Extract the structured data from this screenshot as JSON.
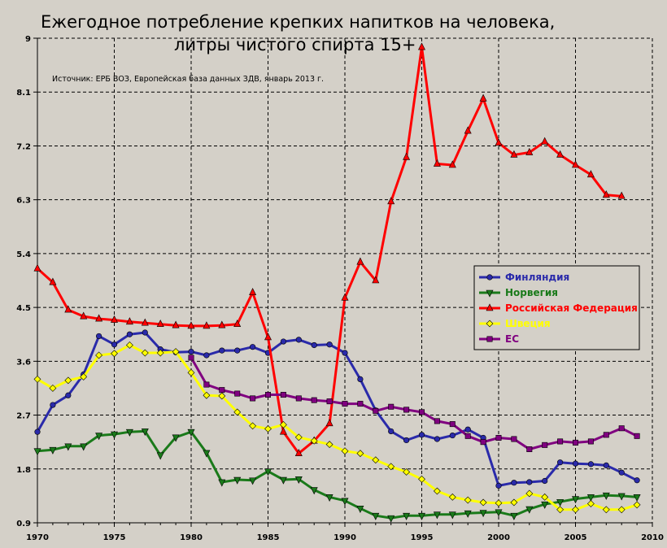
{
  "chart_data": {
    "type": "line",
    "title_line1": "Ежегодное потребление крепких напитков на человека,",
    "title_line2": "литры чистого спирта 15+",
    "source": "Источник: ЕРБ ВОЗ, Европейская база данных ЗДВ, январь 2013 г.",
    "xlim": [
      1970,
      2010
    ],
    "ylim": [
      0.9,
      9
    ],
    "x_ticks": [
      1970,
      1975,
      1980,
      1985,
      1990,
      1995,
      2000,
      2005,
      2010
    ],
    "y_ticks": [
      0.9,
      1.8,
      2.7,
      3.6,
      4.5,
      5.4,
      6.3,
      7.2,
      8.1,
      9
    ],
    "y_tick_labels": [
      "0.9",
      "1.8",
      "2.7",
      "3.6",
      "4.5",
      "5.4",
      "6.3",
      "7.2",
      "8.1",
      "9"
    ],
    "x_tick_labels": [
      "1970",
      "1975",
      "1980",
      "1985",
      "1990",
      "1995",
      "2000",
      "2005",
      "2010"
    ],
    "grid": true,
    "legend_position": "right",
    "series": [
      {
        "name": "Финляндия",
        "color": "#2a2aaa",
        "marker": "circle",
        "x": [
          1970,
          1971,
          1972,
          1973,
          1974,
          1975,
          1976,
          1977,
          1978,
          1979,
          1980,
          1981,
          1982,
          1983,
          1984,
          1985,
          1986,
          1987,
          1988,
          1989,
          1990,
          1991,
          1992,
          1993,
          1994,
          1995,
          1996,
          1997,
          1998,
          1999,
          2000,
          2001,
          2002,
          2003,
          2004,
          2005,
          2006,
          2007,
          2008,
          2009
        ],
        "y": [
          2.42,
          2.87,
          3.03,
          3.38,
          4.02,
          3.88,
          4.05,
          4.08,
          3.8,
          3.75,
          3.76,
          3.7,
          3.78,
          3.78,
          3.84,
          3.74,
          3.93,
          3.96,
          3.87,
          3.88,
          3.74,
          3.3,
          2.78,
          2.43,
          2.28,
          2.37,
          2.3,
          2.36,
          2.46,
          2.32,
          1.52,
          1.57,
          1.58,
          1.6,
          1.91,
          1.89,
          1.88,
          1.86,
          1.74,
          1.61
        ]
      },
      {
        "name": "Норвегия",
        "color": "#1a7a1a",
        "marker": "triangle-down",
        "x": [
          1970,
          1971,
          1972,
          1973,
          1974,
          1975,
          1976,
          1977,
          1978,
          1979,
          1980,
          1981,
          1982,
          1983,
          1984,
          1985,
          1986,
          1987,
          1988,
          1989,
          1990,
          1991,
          1992,
          1993,
          1994,
          1995,
          1996,
          1997,
          1998,
          1999,
          2000,
          2001,
          2002,
          2003,
          2004,
          2005,
          2006,
          2007,
          2008,
          2009
        ],
        "y": [
          2.1,
          2.12,
          2.18,
          2.18,
          2.36,
          2.38,
          2.42,
          2.43,
          2.03,
          2.33,
          2.42,
          2.07,
          1.58,
          1.62,
          1.61,
          1.76,
          1.62,
          1.63,
          1.45,
          1.33,
          1.27,
          1.14,
          1.02,
          0.98,
          1.02,
          1.02,
          1.04,
          1.04,
          1.06,
          1.07,
          1.08,
          1.02,
          1.13,
          1.21,
          1.25,
          1.3,
          1.33,
          1.36,
          1.35,
          1.33
        ]
      },
      {
        "name": "Российская Федерация",
        "color": "#ff0000",
        "marker": "triangle-up",
        "x": [
          1970,
          1971,
          1972,
          1973,
          1974,
          1975,
          1976,
          1977,
          1978,
          1979,
          1980,
          1981,
          1982,
          1983,
          1984,
          1985,
          1986,
          1987,
          1988,
          1989,
          1990,
          1991,
          1992,
          1993,
          1994,
          1995,
          1996,
          1997,
          1998,
          1999,
          2000,
          2001,
          2002,
          2003,
          2004,
          2005,
          2006,
          2007,
          2008
        ],
        "y": [
          5.15,
          4.92,
          4.46,
          4.35,
          4.31,
          4.29,
          4.26,
          4.24,
          4.22,
          4.2,
          4.19,
          4.19,
          4.2,
          4.22,
          4.75,
          4.0,
          2.42,
          2.06,
          2.27,
          2.56,
          4.66,
          5.26,
          4.95,
          6.27,
          7.01,
          8.85,
          6.9,
          6.88,
          7.45,
          7.99,
          7.25,
          7.05,
          7.09,
          7.27,
          7.05,
          6.88,
          6.72,
          6.38,
          6.36
        ]
      },
      {
        "name": "Швеция",
        "color": "#ffff00",
        "marker": "diamond",
        "x": [
          1970,
          1971,
          1972,
          1973,
          1974,
          1975,
          1976,
          1977,
          1978,
          1979,
          1980,
          1981,
          1982,
          1983,
          1984,
          1985,
          1986,
          1987,
          1988,
          1989,
          1990,
          1991,
          1992,
          1993,
          1994,
          1995,
          1996,
          1997,
          1998,
          1999,
          2000,
          2001,
          2002,
          2003,
          2004,
          2005,
          2006,
          2007,
          2008,
          2009
        ],
        "y": [
          3.3,
          3.15,
          3.28,
          3.34,
          3.7,
          3.73,
          3.87,
          3.74,
          3.74,
          3.76,
          3.41,
          3.03,
          3.02,
          2.75,
          2.52,
          2.47,
          2.54,
          2.33,
          2.27,
          2.21,
          2.1,
          2.06,
          1.95,
          1.84,
          1.75,
          1.63,
          1.43,
          1.33,
          1.28,
          1.24,
          1.23,
          1.24,
          1.39,
          1.33,
          1.12,
          1.12,
          1.22,
          1.12,
          1.12,
          1.2
        ]
      },
      {
        "name": "ЕС",
        "color": "#800080",
        "marker": "square",
        "x": [
          1980,
          1981,
          1982,
          1983,
          1984,
          1985,
          1986,
          1987,
          1988,
          1989,
          1990,
          1991,
          1992,
          1993,
          1994,
          1995,
          1996,
          1997,
          1998,
          1999,
          2000,
          2001,
          2002,
          2003,
          2004,
          2005,
          2006,
          2007,
          2008,
          2009
        ],
        "y": [
          3.66,
          3.21,
          3.12,
          3.06,
          2.98,
          3.04,
          3.04,
          2.98,
          2.95,
          2.93,
          2.89,
          2.89,
          2.77,
          2.84,
          2.79,
          2.75,
          2.6,
          2.55,
          2.35,
          2.25,
          2.32,
          2.3,
          2.13,
          2.2,
          2.26,
          2.24,
          2.26,
          2.37,
          2.48,
          2.35
        ]
      }
    ]
  }
}
